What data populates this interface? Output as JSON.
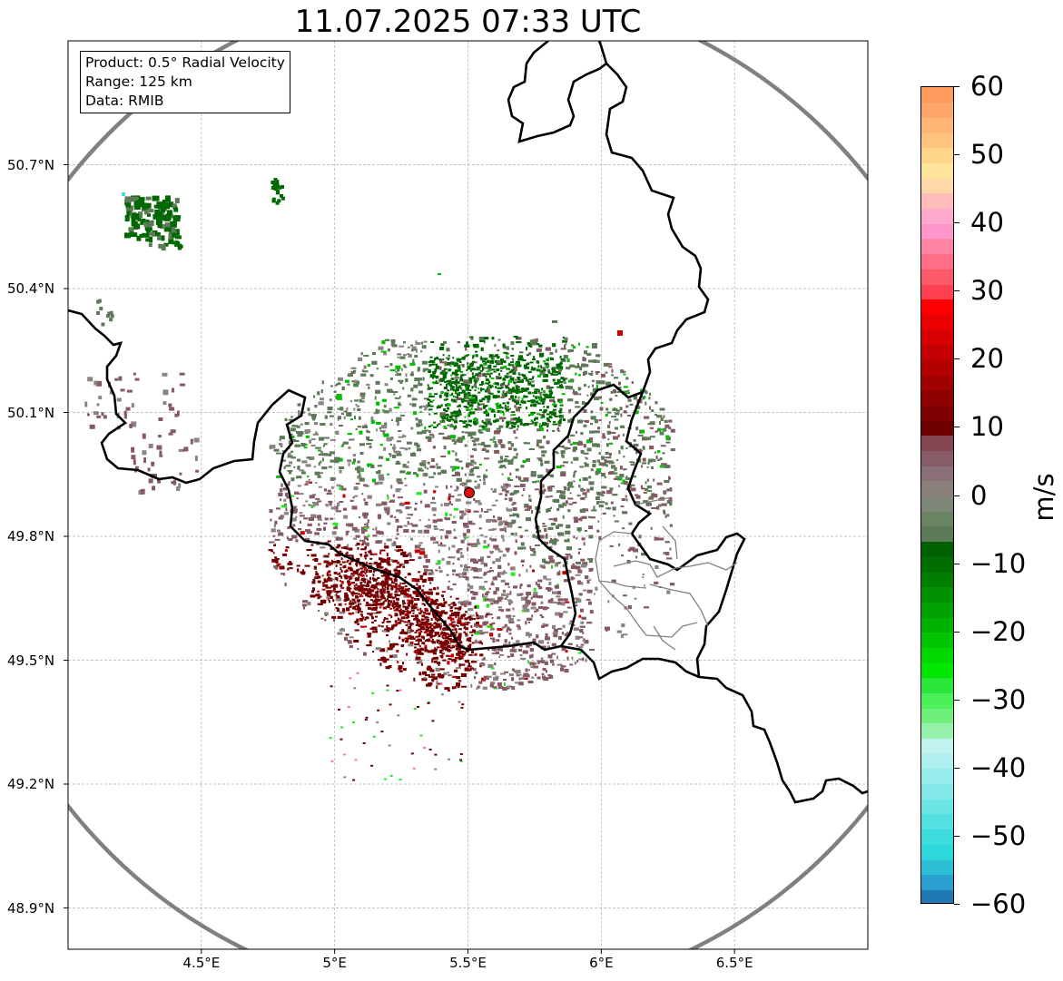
{
  "title": "11.07.2025 07:33 UTC",
  "info_box": {
    "product": "Product: 0.5° Radial Velocity",
    "range": "Range: 125 km",
    "data": "Data: RMIB"
  },
  "lat_labels": [
    "50.7°N",
    "50.4°N",
    "50.1°N",
    "49.8°N",
    "49.5°N",
    "49.2°N",
    "48.9°N"
  ],
  "lat_values": [
    50.7,
    50.4,
    50.1,
    49.8,
    49.5,
    49.2,
    48.9
  ],
  "lon_labels": [
    "4.5°E",
    "5°E",
    "5.5°E",
    "6°E",
    "6.5°E"
  ],
  "lon_values": [
    4.5,
    5.0,
    5.5,
    6.0,
    6.5
  ],
  "extent": {
    "lon_min": 4.0,
    "lon_max": 7.0,
    "lat_min": 48.8,
    "lat_max": 51.0
  },
  "radar_site": {
    "lon": 5.505,
    "lat": 49.914,
    "color": "#e01010"
  },
  "range_ring_color": "#808080",
  "colorbar": {
    "unit": "m/s",
    "vmin": -60,
    "vmax": 60,
    "ticks": [
      60,
      50,
      40,
      30,
      20,
      10,
      0,
      -10,
      -20,
      -30,
      -40,
      -50,
      -60
    ],
    "tick_labels": [
      "60",
      "50",
      "40",
      "30",
      "20",
      "10",
      "0",
      "−10",
      "−20",
      "−30",
      "−40",
      "−50",
      "−60"
    ],
    "colors_bottom_to_top": [
      "#1f77b4",
      "#2a9fd0",
      "#2bbfd6",
      "#2dd8dd",
      "#3ddcdc",
      "#52e0e0",
      "#6ae4e4",
      "#82e8e8",
      "#96ecec",
      "#aef0ee",
      "#c0f2ee",
      "#96f2aa",
      "#6ef07a",
      "#4cf05a",
      "#2ae83a",
      "#00e800",
      "#00d800",
      "#00c400",
      "#00b200",
      "#00a000",
      "#009000",
      "#007e00",
      "#006e00",
      "#006000",
      "#5d7a58",
      "#6a8462",
      "#7e8678",
      "#8a7f7a",
      "#8a6e78",
      "#885c66",
      "#844452",
      "#6e0000",
      "#7e0000",
      "#8e0000",
      "#a00000",
      "#b20000",
      "#c40000",
      "#d80000",
      "#ea0000",
      "#ff0000",
      "#ff4050",
      "#ff5a6a",
      "#ff6e84",
      "#ff84a6",
      "#ff96cc",
      "#ffaacc",
      "#ffbcb8",
      "#ffd8a8",
      "#ffe49c",
      "#ffd68a",
      "#ffc47e",
      "#ffb674",
      "#ffa66a",
      "#ff9a5e"
    ]
  },
  "velocity_colors": {
    "zero_gray": "#8c8480",
    "green_gray": "#5d7a58",
    "dark_green": "#006800",
    "green": "#00c000",
    "bright_green": "#22e822",
    "brown": "#865a62",
    "dark_red": "#760000",
    "red": "#cc0000",
    "pink": "#ff70b0",
    "cyan": "#40e0e0"
  }
}
